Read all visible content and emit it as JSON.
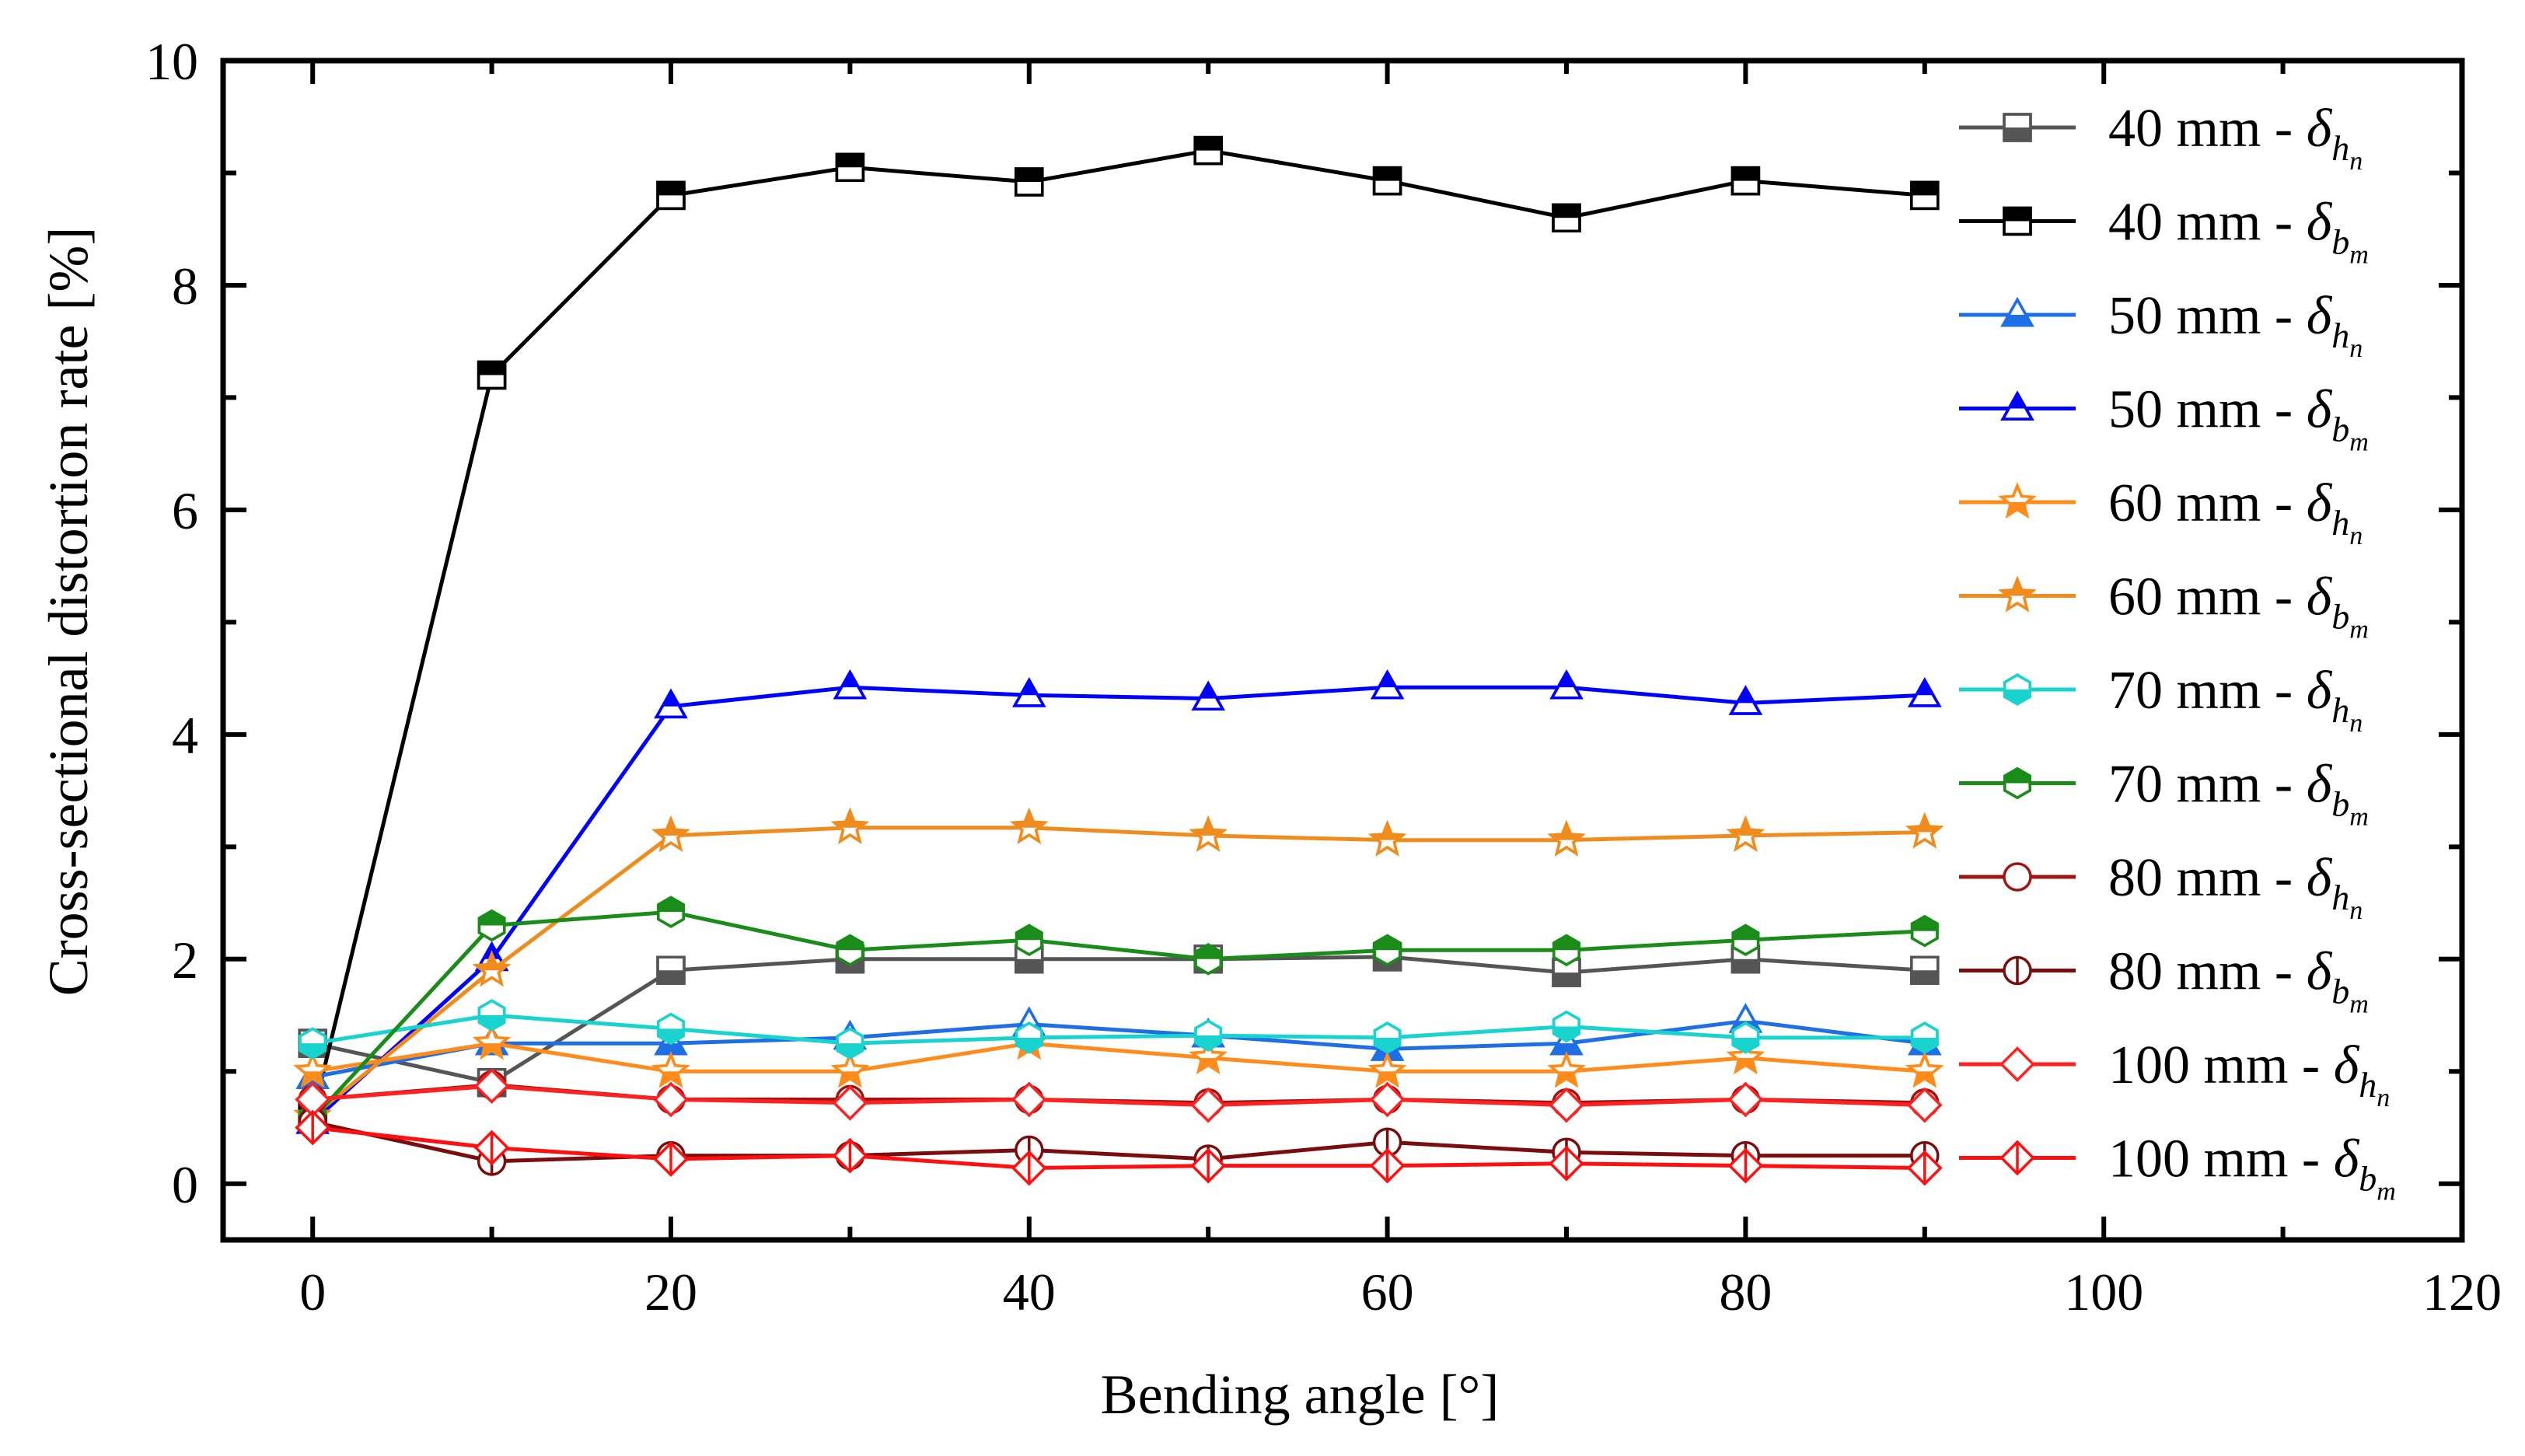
{
  "chart_data": {
    "type": "line",
    "title": "",
    "xlabel": "Bending angle [°]",
    "ylabel": "Cross-sectional distortion rate [%]",
    "xlim": [
      -5,
      120
    ],
    "ylim": [
      -0.5,
      10
    ],
    "xticks": [
      0,
      20,
      40,
      60,
      80,
      100,
      120
    ],
    "yticks": [
      0,
      2,
      4,
      6,
      8,
      10
    ],
    "x": [
      0,
      10,
      20,
      30,
      40,
      50,
      60,
      70,
      80,
      90
    ],
    "legend_position": "right",
    "series": [
      {
        "name": "40 mm - δ",
        "label": "40 mm - ",
        "symbol": "δ",
        "sub1": "h",
        "sub2": "n",
        "color": "#555555",
        "marker": "square",
        "fill": "lower",
        "values": [
          1.25,
          0.9,
          1.9,
          2.0,
          2.0,
          2.0,
          2.02,
          1.88,
          2.0,
          1.9
        ]
      },
      {
        "name": "40 mm - δ",
        "label": "40 mm - ",
        "symbol": "δ",
        "sub1": "b",
        "sub2": "m",
        "color": "#000000",
        "marker": "square",
        "fill": "upper",
        "values": [
          0.6,
          7.2,
          8.8,
          9.05,
          8.92,
          9.2,
          8.93,
          8.6,
          8.93,
          8.8
        ]
      },
      {
        "name": "50 mm - δ",
        "label": "50 mm - ",
        "symbol": "δ",
        "sub1": "h",
        "sub2": "n",
        "color": "#1e6fe6",
        "marker": "triangle",
        "fill": "lower",
        "values": [
          0.95,
          1.25,
          1.25,
          1.3,
          1.42,
          1.32,
          1.2,
          1.25,
          1.45,
          1.25
        ]
      },
      {
        "name": "50 mm - δ",
        "label": "50 mm - ",
        "symbol": "δ",
        "sub1": "b",
        "sub2": "m",
        "color": "#0000ff",
        "marker": "triangle",
        "fill": "upper",
        "values": [
          0.55,
          2.0,
          4.25,
          4.42,
          4.35,
          4.32,
          4.42,
          4.42,
          4.28,
          4.35
        ]
      },
      {
        "name": "60 mm - δ",
        "label": "60 mm - ",
        "symbol": "δ",
        "sub1": "h",
        "sub2": "n",
        "color": "#ff8c1a",
        "marker": "star",
        "fill": "lower",
        "values": [
          1.0,
          1.25,
          1.0,
          1.0,
          1.25,
          1.12,
          1.0,
          1.0,
          1.12,
          1.0
        ]
      },
      {
        "name": "60 mm - δ",
        "label": "60 mm - ",
        "symbol": "δ",
        "sub1": "b",
        "sub2": "m",
        "color": "#f08c1e",
        "marker": "star",
        "fill": "upper",
        "values": [
          0.6,
          1.9,
          3.1,
          3.17,
          3.17,
          3.1,
          3.06,
          3.06,
          3.1,
          3.13
        ]
      },
      {
        "name": "70 mm - δ",
        "label": "70 mm - ",
        "symbol": "δ",
        "sub1": "h",
        "sub2": "n",
        "color": "#19d3cf",
        "marker": "hexagon",
        "fill": "lower",
        "values": [
          1.25,
          1.5,
          1.38,
          1.25,
          1.3,
          1.32,
          1.3,
          1.4,
          1.3,
          1.3
        ]
      },
      {
        "name": "70 mm - δ",
        "label": "70 mm - ",
        "symbol": "δ",
        "sub1": "b",
        "sub2": "m",
        "color": "#1a8c1a",
        "marker": "hexagon",
        "fill": "upper",
        "values": [
          0.58,
          2.3,
          2.42,
          2.08,
          2.17,
          2.0,
          2.08,
          2.08,
          2.17,
          2.25
        ]
      },
      {
        "name": "80 mm - δ",
        "label": "80 mm - ",
        "symbol": "δ",
        "sub1": "h",
        "sub2": "n",
        "color": "#a01414",
        "marker": "circle",
        "fill": "none",
        "values": [
          0.75,
          0.88,
          0.75,
          0.75,
          0.75,
          0.72,
          0.75,
          0.72,
          0.75,
          0.72
        ]
      },
      {
        "name": "80 mm - δ",
        "label": "80 mm - ",
        "symbol": "δ",
        "sub1": "b",
        "sub2": "m",
        "color": "#7a0d0d",
        "marker": "circle-bar",
        "fill": "none",
        "values": [
          0.55,
          0.2,
          0.25,
          0.25,
          0.3,
          0.22,
          0.37,
          0.28,
          0.25,
          0.25
        ]
      },
      {
        "name": "100 mm - δ",
        "label": "100 mm - ",
        "symbol": "δ",
        "sub1": "h",
        "sub2": "n",
        "color": "#ff2020",
        "marker": "diamond",
        "fill": "none",
        "values": [
          0.75,
          0.87,
          0.75,
          0.72,
          0.75,
          0.7,
          0.75,
          0.7,
          0.75,
          0.7
        ]
      },
      {
        "name": "100 mm - δ",
        "label": "100 mm - ",
        "symbol": "δ",
        "sub1": "b",
        "sub2": "m",
        "color": "#ff1010",
        "marker": "diamond-bar",
        "fill": "none",
        "values": [
          0.5,
          0.32,
          0.22,
          0.25,
          0.14,
          0.16,
          0.16,
          0.18,
          0.16,
          0.14
        ]
      }
    ]
  }
}
